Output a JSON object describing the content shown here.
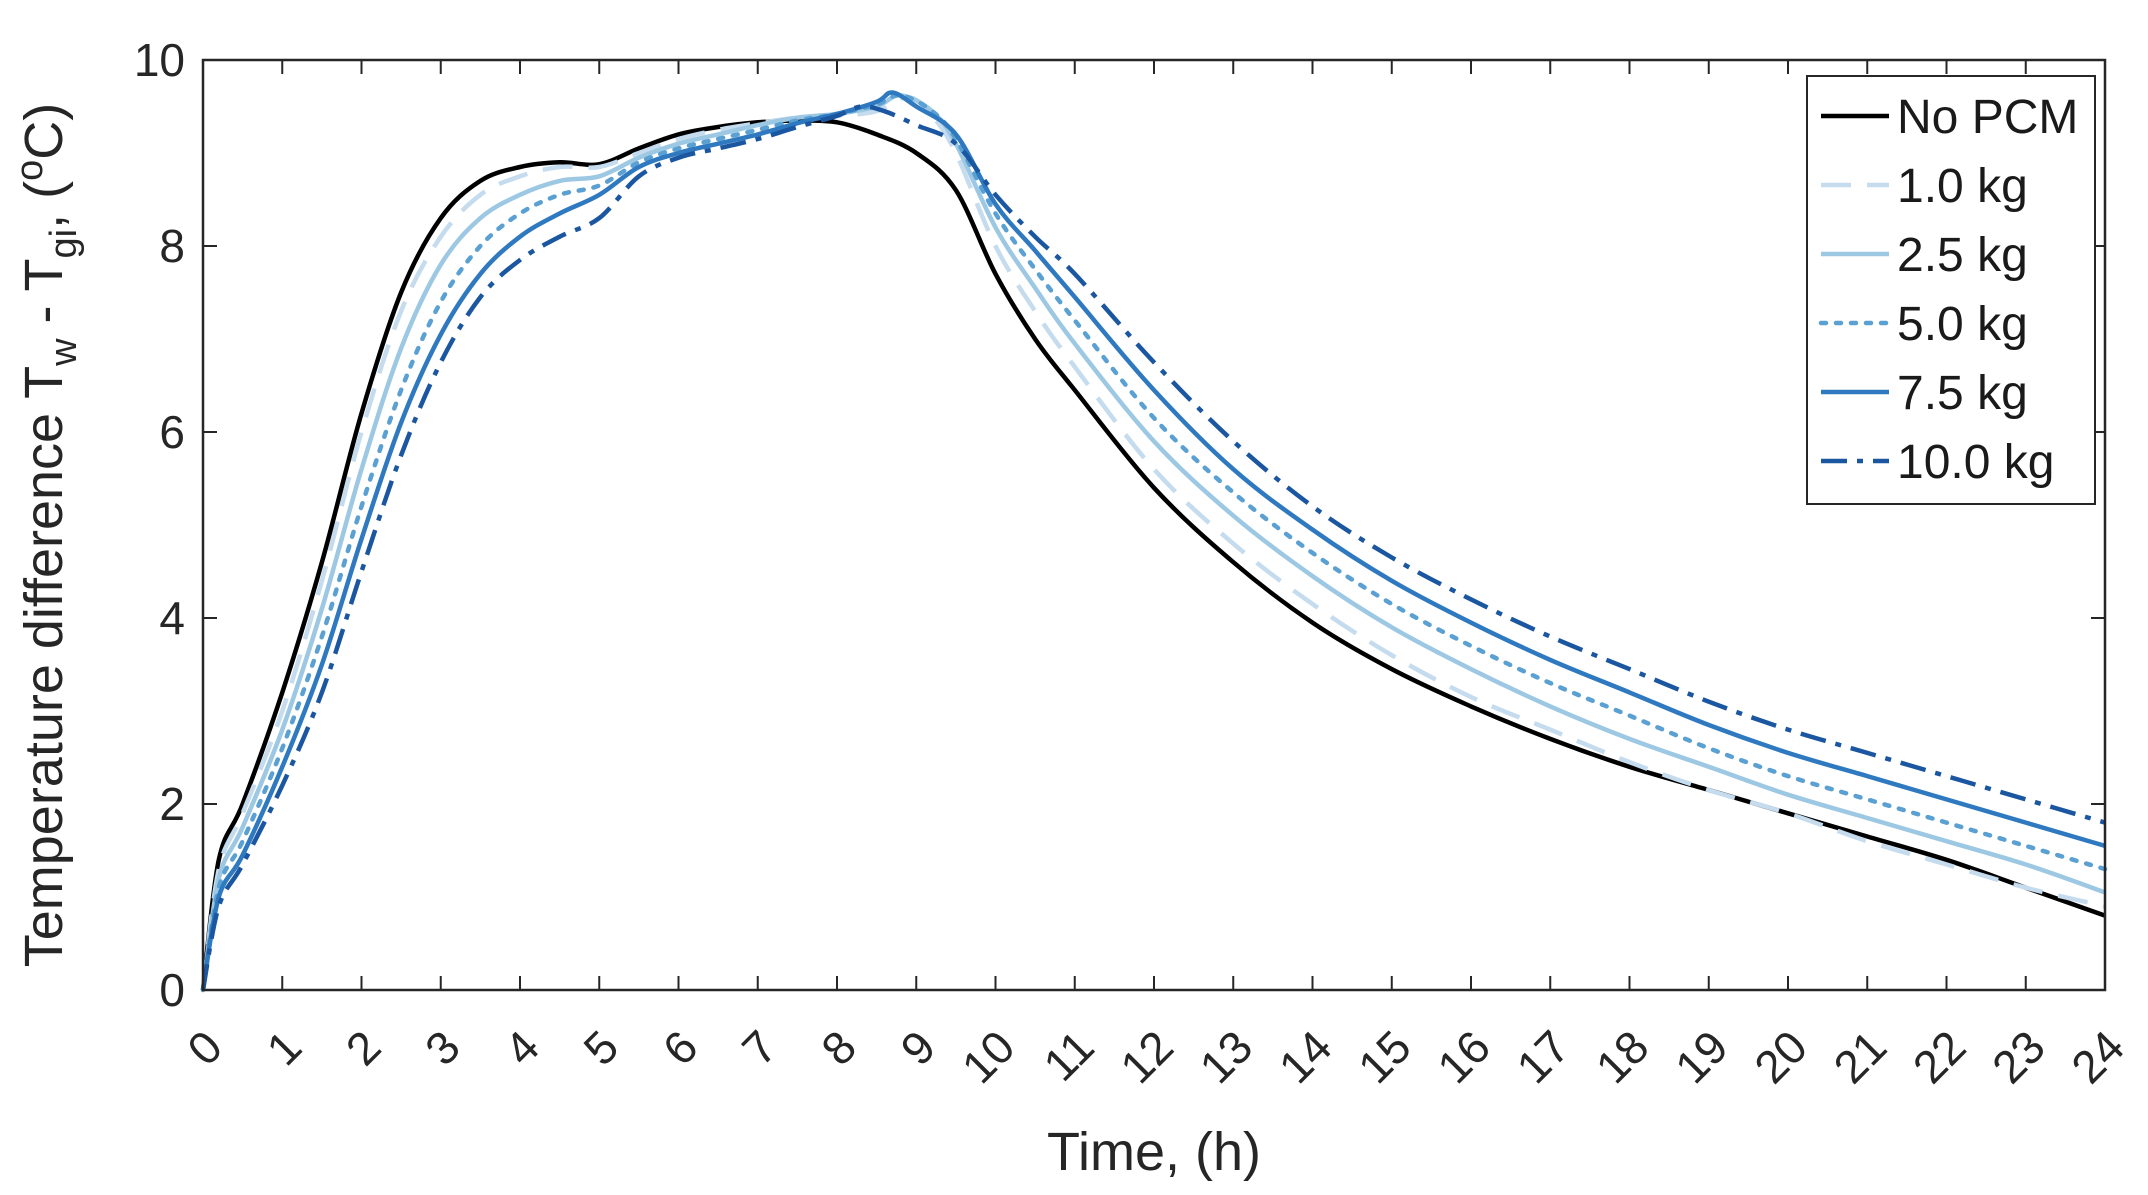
{
  "chart_data": {
    "type": "line",
    "title": "",
    "xlabel": "Time, (h)",
    "ylabel": {
      "base": "Temperature difference T",
      "sub1": "w",
      "mid": " - T",
      "sub2": "gi",
      "tail": ", (",
      "sup": "o",
      "end": "C)"
    },
    "xlim": [
      0,
      24
    ],
    "ylim": [
      0,
      10
    ],
    "xticks": [
      0,
      1,
      2,
      3,
      4,
      5,
      6,
      7,
      8,
      9,
      10,
      11,
      12,
      13,
      14,
      15,
      16,
      17,
      18,
      19,
      20,
      21,
      22,
      23,
      24
    ],
    "xtick_labels": [
      "0",
      "1",
      "2",
      "3",
      "4",
      "5",
      "6",
      "7",
      "8",
      "9",
      "10",
      "11",
      "12",
      "13",
      "14",
      "15",
      "16",
      "17",
      "18",
      "19",
      "20",
      "21",
      "22",
      "23",
      "24"
    ],
    "yticks": [
      0,
      2,
      4,
      6,
      8,
      10
    ],
    "ytick_labels": [
      "0",
      "2",
      "4",
      "6",
      "8",
      "10"
    ],
    "legend_position": "top-right",
    "colors": {
      "axis": "#262626",
      "no_pcm": "#000000",
      "kg1": "#c5dbee",
      "kg25": "#9dc8e3",
      "kg5": "#5aa0d2",
      "kg75": "#2e79bf",
      "kg10": "#1b56a0"
    },
    "series": [
      {
        "name": "No PCM",
        "color": "#000000",
        "dash": "solid",
        "x": [
          0,
          0.2,
          0.5,
          1,
          1.5,
          2,
          2.5,
          3,
          3.5,
          4,
          4.5,
          5,
          5.5,
          6,
          6.5,
          7,
          7.5,
          8,
          8.5,
          9,
          9.5,
          10,
          10.5,
          11,
          12,
          13,
          14,
          15,
          16,
          17,
          18,
          19,
          20,
          21,
          22,
          23,
          24
        ],
        "y": [
          0,
          1.4,
          2.0,
          3.2,
          4.6,
          6.2,
          7.5,
          8.3,
          8.7,
          8.85,
          8.9,
          8.88,
          9.05,
          9.2,
          9.28,
          9.33,
          9.35,
          9.33,
          9.2,
          9.0,
          8.6,
          7.7,
          7.0,
          6.45,
          5.4,
          4.6,
          3.95,
          3.45,
          3.05,
          2.7,
          2.4,
          2.15,
          1.9,
          1.65,
          1.4,
          1.1,
          0.8
        ]
      },
      {
        "name": "1.0 kg",
        "color": "#c5dbee",
        "dash": "long-dash",
        "x": [
          0,
          0.2,
          0.5,
          1,
          1.5,
          2,
          2.5,
          3,
          3.5,
          4,
          4.5,
          5,
          5.5,
          6,
          6.5,
          7,
          7.5,
          8,
          8.5,
          8.9,
          9.2,
          9.5,
          10,
          10.5,
          11,
          12,
          13,
          14,
          15,
          16,
          17,
          18,
          19,
          20,
          21,
          22,
          23,
          24
        ],
        "y": [
          0,
          1.3,
          1.9,
          3.0,
          4.4,
          6.0,
          7.3,
          8.1,
          8.55,
          8.75,
          8.85,
          8.85,
          9.0,
          9.15,
          9.25,
          9.32,
          9.38,
          9.4,
          9.45,
          9.6,
          9.4,
          9.0,
          8.0,
          7.3,
          6.7,
          5.6,
          4.8,
          4.15,
          3.6,
          3.15,
          2.8,
          2.45,
          2.15,
          1.9,
          1.6,
          1.35,
          1.1,
          0.9
        ]
      },
      {
        "name": "2.5 kg",
        "color": "#9dc8e3",
        "dash": "solid",
        "x": [
          0,
          0.2,
          0.5,
          1,
          1.5,
          2,
          2.5,
          3,
          3.5,
          4,
          4.5,
          5,
          5.5,
          6,
          6.5,
          7,
          7.5,
          8,
          8.5,
          8.8,
          9.2,
          9.5,
          10,
          10.5,
          11,
          12,
          13,
          14,
          15,
          16,
          17,
          18,
          19,
          20,
          21,
          22,
          23,
          24
        ],
        "y": [
          0,
          1.2,
          1.75,
          2.8,
          4.1,
          5.6,
          6.9,
          7.8,
          8.3,
          8.55,
          8.7,
          8.75,
          8.95,
          9.1,
          9.2,
          9.3,
          9.38,
          9.42,
          9.5,
          9.62,
          9.45,
          9.1,
          8.2,
          7.55,
          6.95,
          5.9,
          5.1,
          4.45,
          3.9,
          3.45,
          3.05,
          2.7,
          2.4,
          2.1,
          1.85,
          1.6,
          1.35,
          1.05
        ]
      },
      {
        "name": "5.0 kg",
        "color": "#5aa0d2",
        "dash": "dotted",
        "x": [
          0,
          0.2,
          0.5,
          1,
          1.5,
          2,
          2.5,
          3,
          3.5,
          4,
          4.5,
          5,
          5.5,
          6,
          6.5,
          7,
          7.5,
          8,
          8.5,
          8.8,
          9.2,
          9.5,
          10,
          10.5,
          11,
          12,
          13,
          14,
          15,
          16,
          17,
          18,
          19,
          20,
          21,
          22,
          23,
          24
        ],
        "y": [
          0,
          1.1,
          1.6,
          2.6,
          3.8,
          5.2,
          6.45,
          7.4,
          8.0,
          8.35,
          8.55,
          8.65,
          8.9,
          9.05,
          9.15,
          9.25,
          9.35,
          9.42,
          9.52,
          9.62,
          9.45,
          9.15,
          8.35,
          7.75,
          7.2,
          6.15,
          5.35,
          4.7,
          4.15,
          3.7,
          3.3,
          2.95,
          2.6,
          2.3,
          2.05,
          1.8,
          1.55,
          1.3
        ]
      },
      {
        "name": "7.5 kg",
        "color": "#2e79bf",
        "dash": "solid",
        "x": [
          0,
          0.2,
          0.5,
          1,
          1.5,
          2,
          2.5,
          3,
          3.5,
          4,
          4.5,
          5,
          5.5,
          6,
          6.5,
          7,
          7.5,
          8,
          8.5,
          8.7,
          9.0,
          9.5,
          10,
          10.5,
          11,
          12,
          13,
          14,
          15,
          16,
          17,
          18,
          19,
          20,
          21,
          22,
          23,
          24
        ],
        "y": [
          0,
          1.0,
          1.45,
          2.4,
          3.5,
          4.85,
          6.1,
          7.05,
          7.7,
          8.1,
          8.35,
          8.55,
          8.85,
          9.0,
          9.1,
          9.2,
          9.32,
          9.42,
          9.55,
          9.65,
          9.5,
          9.2,
          8.45,
          7.95,
          7.45,
          6.45,
          5.6,
          4.95,
          4.4,
          3.95,
          3.55,
          3.2,
          2.85,
          2.55,
          2.3,
          2.05,
          1.8,
          1.55
        ]
      },
      {
        "name": "10.0 kg",
        "color": "#1b56a0",
        "dash": "dash-dot",
        "x": [
          0,
          0.2,
          0.5,
          1,
          1.5,
          2,
          2.5,
          3,
          3.5,
          4,
          4.5,
          5,
          5.5,
          6,
          6.5,
          7,
          7.5,
          8,
          8.3,
          8.6,
          9.0,
          9.5,
          10,
          10.5,
          11,
          12,
          13,
          14,
          15,
          16,
          17,
          18,
          19,
          20,
          21,
          22,
          23,
          24
        ],
        "y": [
          0,
          0.9,
          1.35,
          2.2,
          3.2,
          4.5,
          5.75,
          6.75,
          7.45,
          7.85,
          8.1,
          8.3,
          8.75,
          8.95,
          9.05,
          9.15,
          9.28,
          9.4,
          9.5,
          9.45,
          9.3,
          9.1,
          8.55,
          8.1,
          7.7,
          6.75,
          5.9,
          5.2,
          4.65,
          4.2,
          3.8,
          3.45,
          3.1,
          2.8,
          2.55,
          2.3,
          2.05,
          1.8
        ]
      }
    ]
  }
}
